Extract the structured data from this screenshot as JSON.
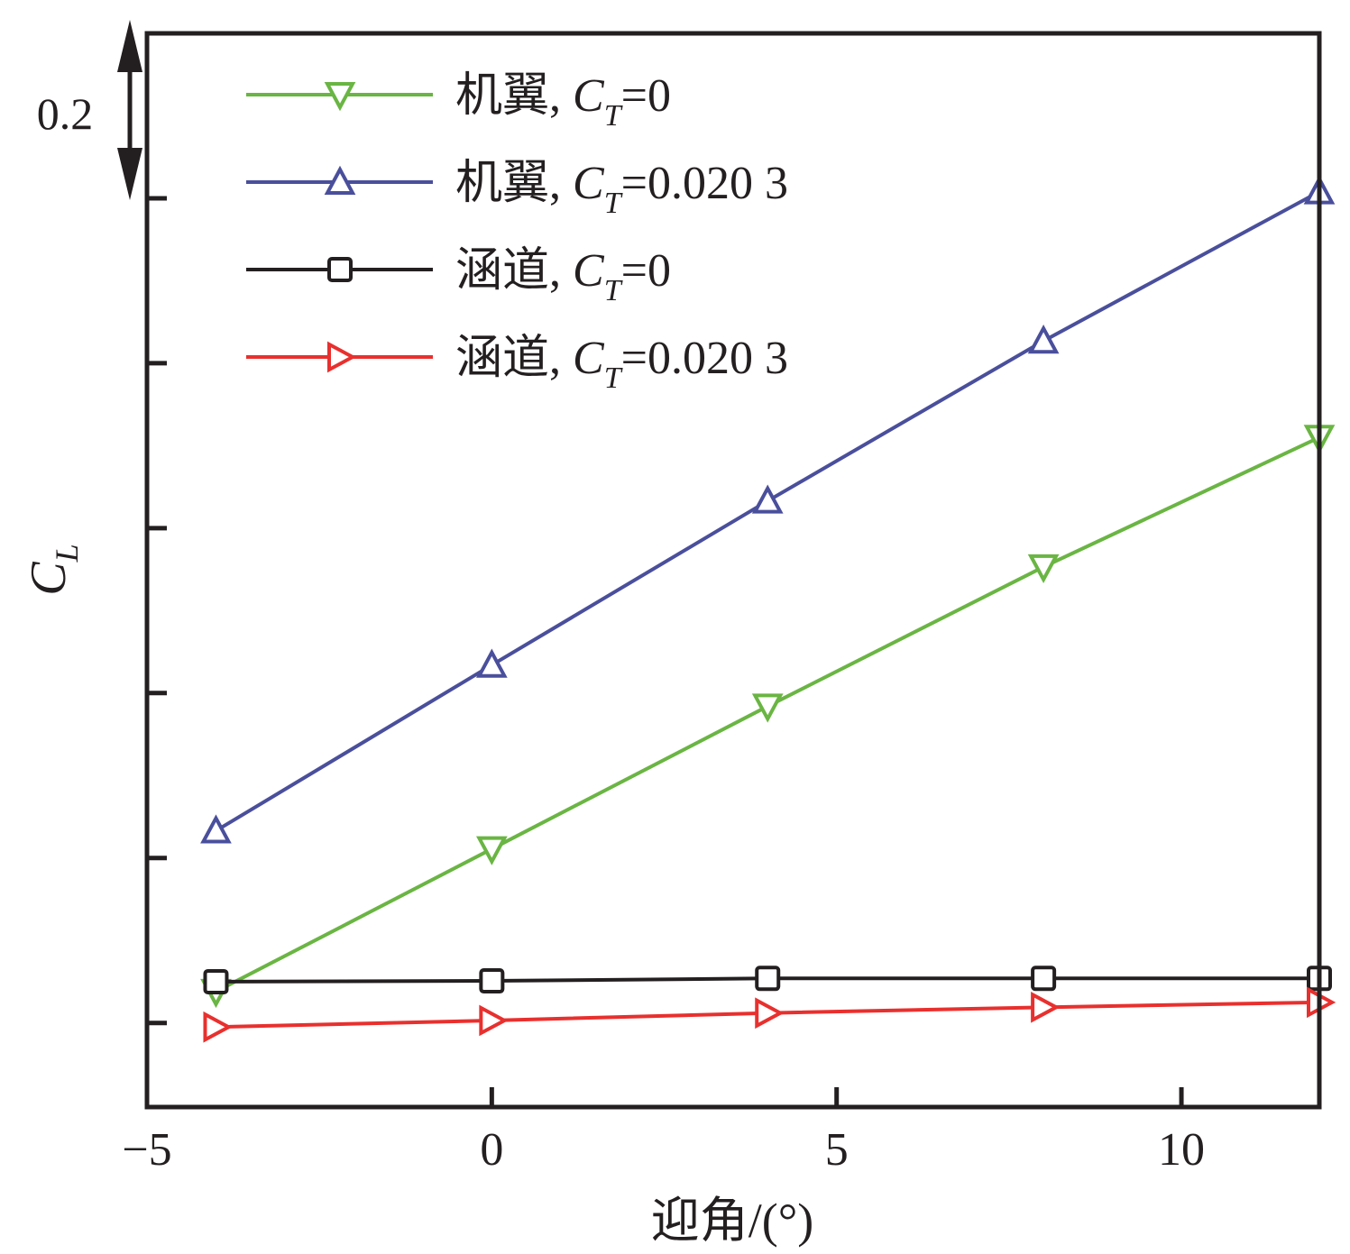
{
  "chart_data": {
    "type": "line",
    "title": "",
    "xlabel": "迎角/(°)",
    "ylabel": {
      "main": "C",
      "sub": "L"
    },
    "xlim": [
      -5,
      12
    ],
    "ylim": [
      -0.102,
      1.2
    ],
    "xticks": [
      -5,
      0,
      5,
      10
    ],
    "xtick_labels": [
      "−5",
      "0",
      "5",
      "10"
    ],
    "yticks": [
      0,
      0.2,
      0.4,
      0.6,
      0.8,
      1.0
    ],
    "ytick_labels_shown": false,
    "scale_bar": {
      "label": "0.2",
      "value": 0.2
    },
    "grid": false,
    "legend_placement": "top-left",
    "x": [
      -4,
      0,
      4,
      8,
      12
    ],
    "series": [
      {
        "name": "机翼, C_T=0",
        "prefix": "机翼, ",
        "ct": "=0",
        "color": "#6ab543",
        "marker": "triangle-down",
        "values": [
          0.038,
          0.211,
          0.384,
          0.553,
          0.71
        ]
      },
      {
        "name": "机翼, C_T=0.020 3",
        "prefix": "机翼, ",
        "ct": "=0.020 3",
        "color": "#4a4f9c",
        "marker": "triangle-up",
        "values": [
          0.233,
          0.434,
          0.633,
          0.827,
          1.008
        ]
      },
      {
        "name": "涵道, C_T=0",
        "prefix": "涵道, ",
        "ct": "=0",
        "color": "#231f20",
        "marker": "square",
        "values": [
          0.05,
          0.051,
          0.054,
          0.054,
          0.054
        ]
      },
      {
        "name": "涵道, C_T=0.020 3",
        "prefix": "涵道, ",
        "ct": "=0.020 3",
        "color": "#e8302e",
        "marker": "triangle-right",
        "values": [
          -0.005,
          0.003,
          0.012,
          0.019,
          0.025
        ]
      }
    ]
  }
}
